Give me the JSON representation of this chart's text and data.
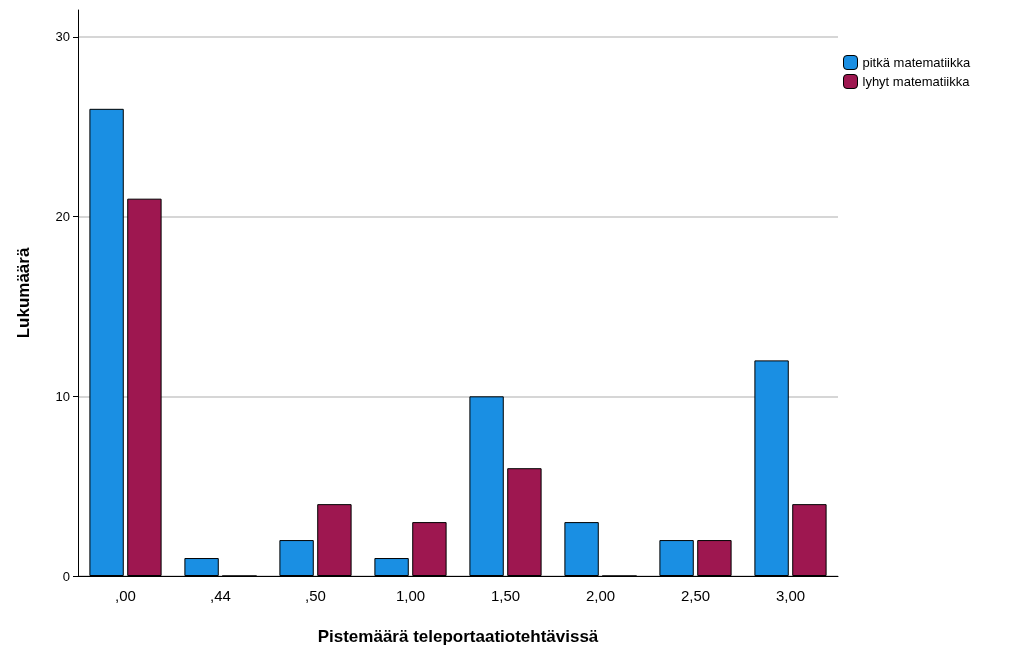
{
  "chart_data": {
    "type": "bar",
    "xlabel": "Pistemäärä teleportaatiotehtävissä",
    "ylabel": "Lukumäärä",
    "categories": [
      ",00",
      ",44",
      ",50",
      "1,00",
      "1,50",
      "2,00",
      "2,50",
      "3,00"
    ],
    "series": [
      {
        "name": "pitkä matematiikka",
        "color": "#1a8fe3",
        "values": [
          26,
          1,
          2,
          1,
          10,
          3,
          2,
          12
        ]
      },
      {
        "name": "lyhyt matematiikka",
        "color": "#9e1750",
        "values": [
          21,
          0,
          4,
          3,
          6,
          0,
          2,
          4
        ]
      }
    ],
    "ylim": [
      0,
      31.5
    ],
    "yticks": [
      0,
      10,
      20,
      30
    ],
    "grid": "y",
    "legend": "top right"
  }
}
